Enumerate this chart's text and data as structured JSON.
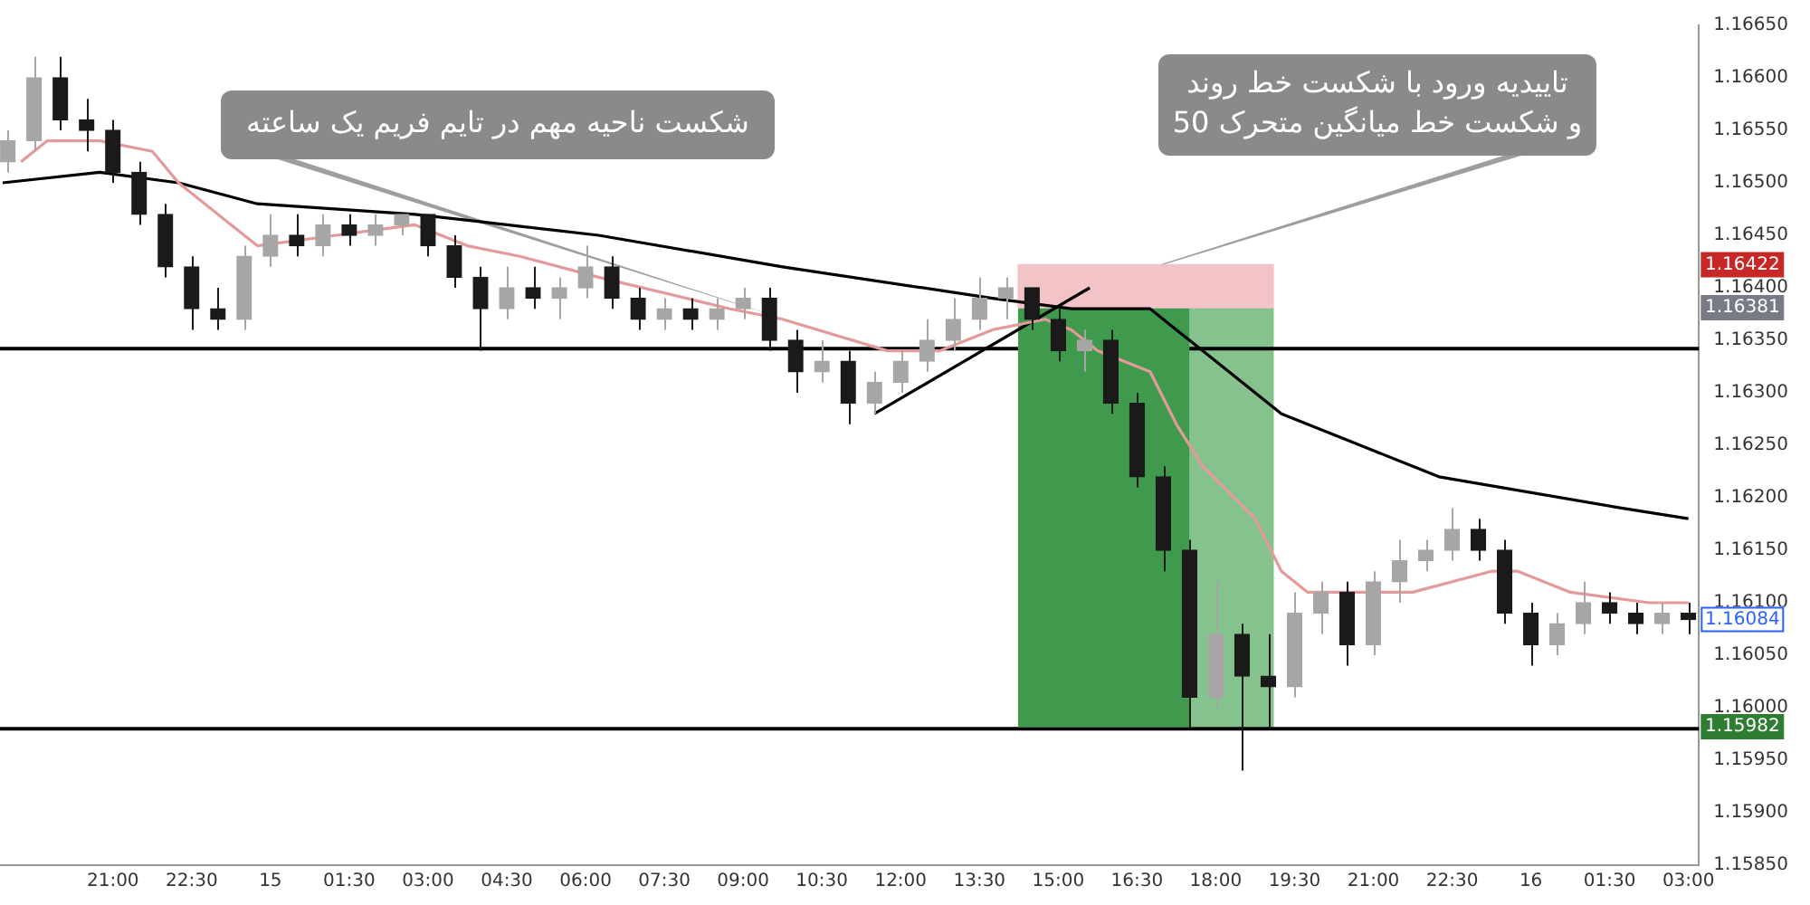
{
  "chart_data": {
    "type": "candlestick",
    "xlim": [
      "--07-14T18:51",
      "--07-16T03:12"
    ],
    "xticks": [
      {
        "value": "--07-14T21:00",
        "label": "21:00"
      },
      {
        "value": "--07-14T22:30",
        "label": "22:30"
      },
      {
        "value": "--07-15T00:00",
        "label": "15"
      },
      {
        "value": "--07-15T01:30",
        "label": "01:30"
      },
      {
        "value": "--07-15T03:00",
        "label": "03:00"
      },
      {
        "value": "--07-15T04:30",
        "label": "04:30"
      },
      {
        "value": "--07-15T06:00",
        "label": "06:00"
      },
      {
        "value": "--07-15T07:30",
        "label": "07:30"
      },
      {
        "value": "--07-15T09:00",
        "label": "09:00"
      },
      {
        "value": "--07-15T10:30",
        "label": "10:30"
      },
      {
        "value": "--07-15T12:00",
        "label": "12:00"
      },
      {
        "value": "--07-15T13:30",
        "label": "13:30"
      },
      {
        "value": "--07-15T15:00",
        "label": "15:00"
      },
      {
        "value": "--07-15T16:30",
        "label": "16:30"
      },
      {
        "value": "--07-15T18:00",
        "label": "18:00"
      },
      {
        "value": "--07-15T19:30",
        "label": "19:30"
      },
      {
        "value": "--07-15T21:00",
        "label": "21:00"
      },
      {
        "value": "--07-15T22:30",
        "label": "22:30"
      },
      {
        "value": "--07-16T00:00",
        "label": "16"
      },
      {
        "value": "--07-16T01:30",
        "label": "01:30"
      },
      {
        "value": "--07-16T03:00",
        "label": "03:00"
      }
    ],
    "ylim": [
      1.1585,
      1.1665
    ],
    "yticks": [
      {
        "value": 1.1585,
        "label": "1.15850"
      },
      {
        "value": 1.159,
        "label": "1.15900"
      },
      {
        "value": 1.1595,
        "label": "1.15950"
      },
      {
        "value": 1.16,
        "label": "1.16000"
      },
      {
        "value": 1.1605,
        "label": "1.16050"
      },
      {
        "value": 1.161,
        "label": "1.16100"
      },
      {
        "value": 1.1615,
        "label": "1.16150"
      },
      {
        "value": 1.162,
        "label": "1.16200"
      },
      {
        "value": 1.1625,
        "label": "1.16250"
      },
      {
        "value": 1.163,
        "label": "1.16300"
      },
      {
        "value": 1.1635,
        "label": "1.16350"
      },
      {
        "value": 1.164,
        "label": "1.16400"
      },
      {
        "value": 1.1645,
        "label": "1.16450"
      },
      {
        "value": 1.165,
        "label": "1.16500"
      },
      {
        "value": 1.1655,
        "label": "1.16550"
      },
      {
        "value": 1.166,
        "label": "1.16600"
      },
      {
        "value": 1.1665,
        "label": "1.16650"
      }
    ],
    "series": [
      {
        "type": "bar",
        "color": "#f2c4c8",
        "x": [
          "--07-15T16:40"
        ],
        "values": [
          0.00041
        ],
        "base": [
          1.16381
        ]
      },
      {
        "type": "bar",
        "color": "#3f9a4d",
        "x": [
          "--07-15T15:52"
        ],
        "values": [
          0.00399
        ],
        "base": [
          1.15982
        ]
      },
      {
        "type": "bar",
        "color": "#86c28d",
        "x": [
          "--07-15T18:18"
        ],
        "values": [
          0.00399
        ],
        "base": [
          1.15982
        ]
      },
      {
        "x": [
          "--07-14T19:00",
          "--07-14T19:30",
          "--07-14T20:00",
          "--07-14T20:30",
          "--07-14T21:00",
          "--07-14T21:30",
          "--07-14T22:00",
          "--07-14T22:30",
          "--07-14T23:00",
          "--07-14T23:30",
          "--07-15T00:00",
          "--07-15T00:30",
          "--07-15T01:00",
          "--07-15T01:30",
          "--07-15T02:00",
          "--07-15T02:30",
          "--07-15T03:00",
          "--07-15T03:30",
          "--07-15T04:00",
          "--07-15T04:30",
          "--07-15T05:00",
          "--07-15T05:30",
          "--07-15T06:00",
          "--07-15T06:30",
          "--07-15T07:00",
          "--07-15T07:30",
          "--07-15T08:00",
          "--07-15T08:30",
          "--07-15T09:00",
          "--07-15T09:30",
          "--07-15T10:00",
          "--07-15T10:30",
          "--07-15T11:00",
          "--07-15T11:30",
          "--07-15T12:00",
          "--07-15T12:30",
          "--07-15T13:00",
          "--07-15T13:30",
          "--07-15T14:00",
          "--07-15T14:30",
          "--07-15T15:00",
          "--07-15T15:30",
          "--07-15T16:00",
          "--07-15T16:30",
          "--07-15T17:00",
          "--07-15T17:30",
          "--07-15T18:00",
          "--07-15T18:30",
          "--07-15T19:00",
          "--07-15T19:30",
          "--07-15T20:00",
          "--07-15T20:30",
          "--07-15T21:00",
          "--07-15T21:30",
          "--07-15T22:00",
          "--07-15T22:30",
          "--07-15T23:00",
          "--07-15T23:30",
          "--07-16T00:00",
          "--07-16T00:30",
          "--07-16T01:00",
          "--07-16T01:30",
          "--07-16T02:00",
          "--07-16T02:30",
          "--07-16T03:00"
        ],
        "ohlc": [
          [
            1.1652,
            1.1655,
            1.1651,
            1.1654
          ],
          [
            1.1654,
            1.1662,
            1.1653,
            1.166
          ],
          [
            1.166,
            1.1662,
            1.1655,
            1.1656
          ],
          [
            1.1656,
            1.1658,
            1.1653,
            1.1655
          ],
          [
            1.1655,
            1.1656,
            1.165,
            1.1651
          ],
          [
            1.1651,
            1.1652,
            1.1646,
            1.1647
          ],
          [
            1.1647,
            1.1648,
            1.1641,
            1.1642
          ],
          [
            1.1642,
            1.1643,
            1.1636,
            1.1638
          ],
          [
            1.1638,
            1.164,
            1.1636,
            1.1637
          ],
          [
            1.1637,
            1.1644,
            1.1636,
            1.1643
          ],
          [
            1.1643,
            1.1647,
            1.1642,
            1.1645
          ],
          [
            1.1645,
            1.1647,
            1.1643,
            1.1644
          ],
          [
            1.1644,
            1.1647,
            1.1643,
            1.1646
          ],
          [
            1.1646,
            1.1647,
            1.1644,
            1.1645
          ],
          [
            1.1645,
            1.1647,
            1.1644,
            1.1646
          ],
          [
            1.1646,
            1.1647,
            1.1645,
            1.1647
          ],
          [
            1.1647,
            1.1647,
            1.1643,
            1.1644
          ],
          [
            1.1644,
            1.1645,
            1.164,
            1.1641
          ],
          [
            1.1641,
            1.1642,
            1.1634,
            1.1638
          ],
          [
            1.1638,
            1.1642,
            1.1637,
            1.164
          ],
          [
            1.164,
            1.1642,
            1.1638,
            1.1639
          ],
          [
            1.1639,
            1.1641,
            1.1637,
            1.164
          ],
          [
            1.164,
            1.1644,
            1.1639,
            1.1642
          ],
          [
            1.1642,
            1.1643,
            1.1638,
            1.1639
          ],
          [
            1.1639,
            1.164,
            1.1636,
            1.1637
          ],
          [
            1.1637,
            1.1639,
            1.1636,
            1.1638
          ],
          [
            1.1638,
            1.1639,
            1.1636,
            1.1637
          ],
          [
            1.1637,
            1.1639,
            1.1636,
            1.1638
          ],
          [
            1.1638,
            1.164,
            1.1637,
            1.1639
          ],
          [
            1.1639,
            1.164,
            1.1634,
            1.1635
          ],
          [
            1.1635,
            1.1636,
            1.163,
            1.1632
          ],
          [
            1.1632,
            1.1635,
            1.1631,
            1.1633
          ],
          [
            1.1633,
            1.1634,
            1.1627,
            1.1629
          ],
          [
            1.1629,
            1.1632,
            1.1628,
            1.1631
          ],
          [
            1.1631,
            1.1634,
            1.163,
            1.1633
          ],
          [
            1.1633,
            1.1637,
            1.1632,
            1.1635
          ],
          [
            1.1635,
            1.1639,
            1.1634,
            1.1637
          ],
          [
            1.1637,
            1.1641,
            1.1636,
            1.1639
          ],
          [
            1.1639,
            1.1641,
            1.1637,
            1.164
          ],
          [
            1.164,
            1.164,
            1.1636,
            1.1637
          ],
          [
            1.1637,
            1.1638,
            1.1633,
            1.1634
          ],
          [
            1.1634,
            1.1636,
            1.1632,
            1.1635
          ],
          [
            1.1635,
            1.1636,
            1.1628,
            1.1629
          ],
          [
            1.1629,
            1.163,
            1.1621,
            1.1622
          ],
          [
            1.1622,
            1.1623,
            1.1613,
            1.1615
          ],
          [
            1.1615,
            1.1616,
            1.1598,
            1.1601
          ],
          [
            1.1601,
            1.1612,
            1.16,
            1.1607
          ],
          [
            1.1607,
            1.1608,
            1.1594,
            1.1603
          ],
          [
            1.1603,
            1.1607,
            1.1598,
            1.1602
          ],
          [
            1.1602,
            1.1611,
            1.1601,
            1.1609
          ],
          [
            1.1609,
            1.1612,
            1.1607,
            1.1611
          ],
          [
            1.1611,
            1.1612,
            1.1604,
            1.1606
          ],
          [
            1.1606,
            1.1613,
            1.1605,
            1.1612
          ],
          [
            1.1612,
            1.1616,
            1.161,
            1.1614
          ],
          [
            1.1614,
            1.1616,
            1.1613,
            1.1615
          ],
          [
            1.1615,
            1.1619,
            1.1614,
            1.1617
          ],
          [
            1.1617,
            1.1618,
            1.1614,
            1.1615
          ],
          [
            1.1615,
            1.1616,
            1.1608,
            1.1609
          ],
          [
            1.1609,
            1.161,
            1.1604,
            1.1606
          ],
          [
            1.1606,
            1.1609,
            1.1605,
            1.1608
          ],
          [
            1.1608,
            1.1612,
            1.1607,
            1.161
          ],
          [
            1.161,
            1.1611,
            1.1608,
            1.1609
          ],
          [
            1.1609,
            1.161,
            1.1607,
            1.1608
          ],
          [
            1.1608,
            1.161,
            1.1607,
            1.1609
          ],
          [
            1.1609,
            1.161,
            1.1607,
            1.16084
          ]
        ],
        "colors": [
          "#a6a6a6",
          "#a6a6a6",
          "#1a1a1a",
          "#1a1a1a",
          "#1a1a1a",
          "#1a1a1a",
          "#1a1a1a",
          "#1a1a1a",
          "#1a1a1a",
          "#a6a6a6",
          "#a6a6a6",
          "#1a1a1a",
          "#a6a6a6",
          "#1a1a1a",
          "#a6a6a6",
          "#a6a6a6",
          "#1a1a1a",
          "#1a1a1a",
          "#1a1a1a",
          "#a6a6a6",
          "#1a1a1a",
          "#a6a6a6",
          "#a6a6a6",
          "#1a1a1a",
          "#1a1a1a",
          "#a6a6a6",
          "#1a1a1a",
          "#a6a6a6",
          "#a6a6a6",
          "#1a1a1a",
          "#1a1a1a",
          "#a6a6a6",
          "#1a1a1a",
          "#a6a6a6",
          "#a6a6a6",
          "#a6a6a6",
          "#a6a6a6",
          "#a6a6a6",
          "#a6a6a6",
          "#1a1a1a",
          "#1a1a1a",
          "#a6a6a6",
          "#1a1a1a",
          "#1a1a1a",
          "#1a1a1a",
          "#1a1a1a",
          "#a6a6a6",
          "#1a1a1a",
          "#1a1a1a",
          "#a6a6a6",
          "#a6a6a6",
          "#1a1a1a",
          "#a6a6a6",
          "#a6a6a6",
          "#a6a6a6",
          "#a6a6a6",
          "#1a1a1a",
          "#1a1a1a",
          "#1a1a1a",
          "#a6a6a6",
          "#a6a6a6",
          "#1a1a1a",
          "#1a1a1a",
          "#a6a6a6",
          "#1a1a1a"
        ]
      },
      {
        "type": "line",
        "color": "#e39a9a",
        "x": [
          "--07-14T19:15",
          "--07-14T19:45",
          "--07-14T20:45",
          "--07-14T21:45",
          "--07-14T22:15",
          "--07-14T23:45",
          "--07-15T01:15",
          "--07-15T02:45",
          "--07-15T03:45",
          "--07-15T04:45",
          "--07-15T06:15",
          "--07-15T08:45",
          "--07-15T09:45",
          "--07-15T11:45",
          "--07-15T12:45",
          "--07-15T13:45",
          "--07-15T14:45",
          "--07-15T15:15",
          "--07-15T15:45",
          "--07-15T16:45",
          "--07-15T17:15",
          "--07-15T17:45",
          "--07-15T18:45",
          "--07-15T19:15",
          "--07-15T19:45",
          "--07-15T20:45",
          "--07-15T21:45",
          "--07-15T23:15",
          "--07-15T23:45",
          "--07-16T00:45",
          "--07-16T02:15",
          "--07-16T03:00"
        ],
        "values": [
          1.1652,
          1.1654,
          1.1654,
          1.1653,
          1.165,
          1.1644,
          1.1645,
          1.1646,
          1.1644,
          1.1643,
          1.1641,
          1.1638,
          1.1637,
          1.1634,
          1.1634,
          1.1636,
          1.1637,
          1.1636,
          1.1634,
          1.1632,
          1.1627,
          1.1623,
          1.1618,
          1.1613,
          1.1611,
          1.1611,
          1.1611,
          1.1613,
          1.1613,
          1.1611,
          1.161,
          1.161
        ]
      },
      {
        "type": "line",
        "color": "#000000",
        "x": [
          "--07-14T18:54",
          "--07-14T20:45",
          "--07-14T22:15",
          "--07-14T23:45",
          "--07-15T02:45",
          "--07-15T06:15",
          "--07-15T09:45",
          "--07-15T13:45",
          "--07-15T15:15",
          "--07-15T16:45",
          "--07-15T17:15",
          "--07-15T17:45",
          "--07-15T18:45",
          "--07-15T19:15",
          "--07-15T20:45",
          "--07-15T22:15",
          "--07-16T01:45",
          "--07-16T03:00"
        ],
        "values": [
          1.165,
          1.1651,
          1.165,
          1.1648,
          1.1647,
          1.1645,
          1.1642,
          1.1639,
          1.1638,
          1.1638,
          1.1636,
          1.1634,
          1.163,
          1.1628,
          1.1625,
          1.1622,
          1.1619,
          1.1618
        ]
      },
      {
        "type": "line",
        "color": "#000000",
        "x": [
          "--07-15T11:30",
          "--07-15T15:36"
        ],
        "values": [
          1.1628,
          1.164
        ]
      }
    ],
    "ref_lines": [
      {
        "axis": "y",
        "value": 1.16342,
        "color": "#000000"
      },
      {
        "axis": "y",
        "value": 1.1598,
        "color": "#000000"
      }
    ],
    "annotations": [
      {
        "text": "شکست ناحیه مهم در تایم فریم یک ساعته",
        "x": "--07-15T09:48",
        "y": 1.1637
      },
      {
        "text": "تاییدیه ورود با شکست خط روند\nو شکست خط میانگین متحرک 50",
        "x": "--07-15T14:54",
        "y": 1.1639
      },
      "1.16422",
      "1.16381",
      "1.16084",
      "1.15982"
    ]
  }
}
